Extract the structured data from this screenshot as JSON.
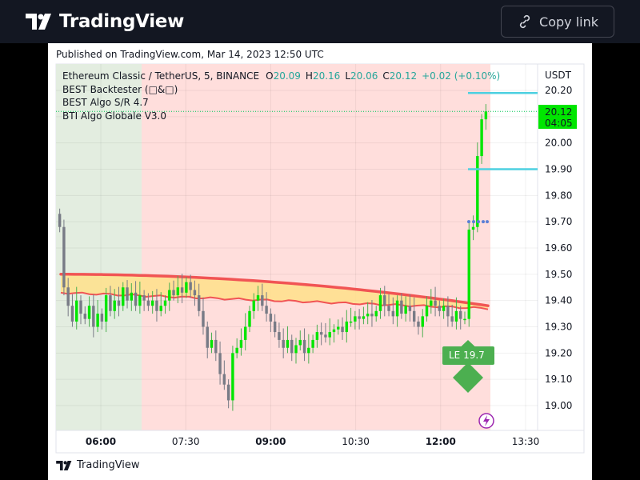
{
  "header": {
    "brand": "TradingView",
    "copy_link_label": "Copy link"
  },
  "published": "Published on TradingView.com, Mar 14, 2023 12:50 UTC",
  "legend": {
    "symbol": "Ethereum Classic / TetherUS, 5, BINANCE",
    "o_label": "O",
    "o_value": "20.09",
    "h_label": "H",
    "h_value": "20.16",
    "l_label": "L",
    "l_value": "20.06",
    "c_label": "C",
    "c_value": "20.12",
    "change": "+0.02 (+0.10%)",
    "indicators": [
      "BEST Backtester (□&□)",
      "BEST Algo S/R 4.7",
      "BTI Algo Globale V3.0"
    ]
  },
  "price_axis": {
    "currency": "USDT",
    "current_price": "20.12",
    "countdown": "04:05"
  },
  "annotation": {
    "label": "LE 19.7"
  },
  "footer": {
    "brand": "TradingView"
  },
  "colors": {
    "up": "#00e600",
    "down": "#787b86",
    "bg_green": "#e3ede0",
    "bg_red": "#ffdedc",
    "ma_line": "#f15454",
    "cloud": "#ffe08a",
    "sr_line": "#4dd0e1",
    "label_green": "#4caf50"
  },
  "chart_data": {
    "type": "candlestick",
    "x_ticks": [
      "06:00",
      "07:30",
      "09:00",
      "10:30",
      "12:00",
      "13:30"
    ],
    "y_ticks": [
      19.0,
      19.1,
      19.2,
      19.3,
      19.4,
      19.5,
      19.6,
      19.7,
      19.8,
      19.9,
      20.0,
      20.1,
      20.2
    ],
    "ylim": [
      18.9,
      20.3
    ],
    "closes": [
      19.68,
      19.45,
      19.38,
      19.32,
      19.4,
      19.35,
      19.33,
      19.38,
      19.3,
      19.35,
      19.32,
      19.42,
      19.36,
      19.4,
      19.38,
      19.45,
      19.4,
      19.43,
      19.38,
      19.42,
      19.4,
      19.38,
      19.4,
      19.36,
      19.38,
      19.4,
      19.44,
      19.42,
      19.45,
      19.43,
      19.47,
      19.44,
      19.42,
      19.36,
      19.3,
      19.22,
      19.25,
      19.2,
      19.12,
      19.08,
      19.02,
      19.2,
      19.22,
      19.25,
      19.3,
      19.36,
      19.4,
      19.42,
      19.38,
      19.35,
      19.32,
      19.28,
      19.25,
      19.22,
      19.25,
      19.2,
      19.23,
      19.25,
      19.2,
      19.22,
      19.25,
      19.28,
      19.27,
      19.26,
      19.28,
      19.29,
      19.3,
      19.28,
      19.32,
      19.32,
      19.34,
      19.33,
      19.34,
      19.35,
      19.34,
      19.36,
      19.42,
      19.38,
      19.36,
      19.34,
      19.4,
      19.35,
      19.38,
      19.36,
      19.32,
      19.3,
      19.34,
      19.38,
      19.4,
      19.38,
      19.36,
      19.38,
      19.34,
      19.32,
      19.36,
      19.33,
      19.33,
      19.67,
      19.68,
      19.95,
      20.09,
      20.12
    ],
    "ma_start": 19.5,
    "ma_end": 19.38,
    "band_lower_start": 19.43,
    "band_lower_end": 19.37,
    "resistance_lines": [
      20.19,
      19.9
    ],
    "signal_dots": 19.7,
    "last_price": 20.12
  }
}
